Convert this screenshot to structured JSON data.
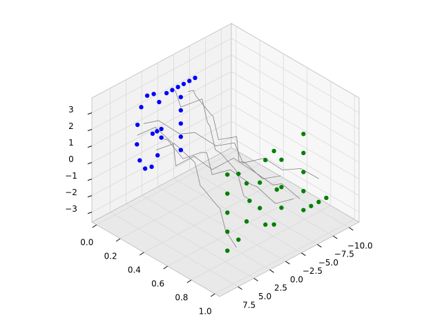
{
  "chart_data": {
    "type": "scatter3d",
    "xlim": [
      -0.04,
      1.04
    ],
    "ylim": [
      -11.6,
      10.4
    ],
    "zlim": [
      -3.6,
      3.9
    ],
    "xticks": [
      {
        "value": 0,
        "label": "0.0"
      },
      0.2,
      0.4,
      0.6,
      0.8,
      {
        "value": 1,
        "label": "1.0"
      }
    ],
    "yticks": [
      {
        "value": -10,
        "label": "−10.0"
      },
      {
        "value": -7.5,
        "label": "−7.5"
      },
      {
        "value": -5,
        "label": "−5.0"
      },
      {
        "value": -2.5,
        "label": "−2.5"
      },
      {
        "value": 0,
        "label": "0.0"
      },
      2.5,
      {
        "value": 5,
        "label": "5.0"
      },
      7.5
    ],
    "zticks": [
      {
        "value": -3,
        "label": "−3"
      },
      {
        "value": -2,
        "label": "−2"
      },
      {
        "value": -1,
        "label": "−1"
      },
      0,
      1,
      2,
      3
    ],
    "grid": true,
    "series": [
      {
        "color": "#808080",
        "marker": "line",
        "x": [
          0,
          0.1,
          0.2,
          0.3,
          0.4,
          0.5,
          0.6,
          0.7,
          0.8,
          0.9,
          1
        ],
        "y": [
          3,
          2.5,
          1,
          0.5,
          -1,
          -2,
          -1.5,
          -3,
          -4,
          -5,
          -6
        ],
        "z": [
          1,
          1.5,
          0.8,
          1.2,
          0.5,
          0.9,
          0.2,
          0.6,
          0.1,
          0.4,
          0
        ]
      },
      {
        "color": "#808080",
        "marker": "line",
        "x": [
          0,
          0.1,
          0.2,
          0.3,
          0.4,
          0.5,
          0.6,
          0.7,
          0.8,
          0.9,
          1
        ],
        "y": [
          -2,
          -1,
          -2.5,
          -1.5,
          0,
          1,
          2,
          1.5,
          3,
          4,
          5
        ],
        "z": [
          2,
          1.6,
          2.2,
          1.4,
          1.9,
          1.1,
          1.5,
          0.8,
          1.2,
          0.6,
          1
        ]
      },
      {
        "color": "#808080",
        "marker": "line",
        "x": [
          0,
          0.1,
          0.2,
          0.3,
          0.4,
          0.5,
          0.6,
          0.7,
          0.8,
          0.9,
          1
        ],
        "y": [
          0,
          1,
          0.5,
          -0.5,
          0.5,
          1.5,
          0.5,
          -1,
          0,
          -1,
          -2
        ],
        "z": [
          -0.5,
          0,
          -0.8,
          -0.2,
          0.4,
          -0.3,
          0.2,
          -0.6,
          -0.1,
          -0.9,
          -0.4
        ]
      },
      {
        "color": "#808080",
        "marker": "line",
        "x": [
          0,
          0.1,
          0.2,
          0.3,
          0.4,
          0.5,
          0.6,
          0.7,
          0.8,
          0.9,
          1
        ],
        "y": [
          4,
          3,
          2,
          3.5,
          2.5,
          1.5,
          0,
          -1,
          -2.5,
          -2,
          -3
        ],
        "z": [
          0.5,
          1.2,
          0.4,
          -0.2,
          0.6,
          0,
          0.8,
          0.3,
          -0.5,
          0.1,
          -0.6
        ]
      },
      {
        "color": "#808080",
        "marker": "line",
        "x": [
          0,
          0.1,
          0.2,
          0.3,
          0.4,
          0.5,
          0.6,
          0.7,
          0.8,
          0.9,
          1
        ],
        "y": [
          -4,
          -3,
          -1.5,
          -2,
          -0.5,
          0.5,
          -0.5,
          1,
          2,
          1,
          0
        ],
        "z": [
          1.5,
          2.2,
          2.6,
          1.8,
          2.4,
          1.6,
          2,
          1.2,
          1.8,
          1,
          1.4
        ]
      },
      {
        "color": "#808080",
        "marker": "line",
        "x": [
          0,
          0.1,
          0.2,
          0.3,
          0.4,
          0.5,
          0.6,
          0.7,
          0.8,
          0.9,
          1
        ],
        "y": [
          1,
          0,
          -1,
          0.5,
          1.5,
          3,
          2.5,
          4,
          5,
          6.5,
          7
        ],
        "z": [
          -1,
          -0.4,
          -1.2,
          -0.6,
          -1.4,
          -0.8,
          -1.6,
          -1,
          -1.7,
          -1.2,
          -1.5
        ]
      },
      {
        "color": "#0000ff",
        "marker": "dot",
        "x": [
          0.05,
          0.05,
          0.05,
          0.05,
          0.05,
          0.05,
          0.05,
          0.05,
          0.05,
          0.05,
          0.05,
          0.05,
          0.05,
          0.05,
          0.05,
          0.05,
          0.05,
          0.05,
          0.05,
          0.05,
          0.05,
          0.05,
          0.05,
          0.05,
          0.05
        ],
        "y": [
          1.47,
          2.32,
          3.35,
          4.29,
          4.88,
          4.97,
          4.53,
          3.68,
          2.65,
          1.71,
          1.12,
          1.12,
          1.8,
          2.5,
          0.3,
          -0.6,
          -1.5,
          -2.4,
          -3.3,
          -4.2,
          -1.95,
          -1.95,
          -1.95,
          -1.95,
          -1.95
        ],
        "z": [
          2.2,
          2.86,
          2.97,
          2.47,
          1.52,
          0.36,
          -0.7,
          -1.37,
          -1.47,
          -0.97,
          -0.02,
          0.5,
          0.5,
          0.5,
          2.5,
          2.5,
          2.5,
          2.5,
          2.5,
          2.5,
          1.8,
          1,
          0.2,
          -0.6,
          -1.4
        ]
      },
      {
        "color": "#008000",
        "marker": "dot",
        "x": [
          0.95,
          0.95,
          0.95,
          0.95,
          0.95,
          0.95,
          0.95,
          0.95,
          0.95,
          0.95,
          0.95,
          0.95,
          0.95,
          0.95,
          0.95,
          0.95,
          0.95,
          0.95,
          0.95,
          0.95,
          0.95,
          0.95,
          0.95,
          0.95,
          0.95,
          0.95,
          0.95,
          0.95
        ],
        "y": [
          7.5,
          7.5,
          7.5,
          7.5,
          7.5,
          5.75,
          4.47,
          4,
          4.47,
          5.75,
          -1.03,
          0.15,
          1.5,
          2.38,
          2.38,
          1.5,
          0.15,
          -1.03,
          -1.03,
          -0.3,
          -4.5,
          -4.5,
          -4.5,
          -4.5,
          -4.5,
          -5.7,
          -6.9,
          -8.1
        ],
        "z": [
          -1.8,
          -0.65,
          0.5,
          1.65,
          2.8,
          2.49,
          1.65,
          0.5,
          -0.65,
          -1.49,
          1.95,
          2.72,
          2.45,
          1.27,
          -0.27,
          -1.45,
          -1.72,
          -0.95,
          0.3,
          0.3,
          2.8,
          1.65,
          0.5,
          -0.65,
          -1.8,
          -1.8,
          -1.8,
          -1.8
        ]
      }
    ]
  }
}
